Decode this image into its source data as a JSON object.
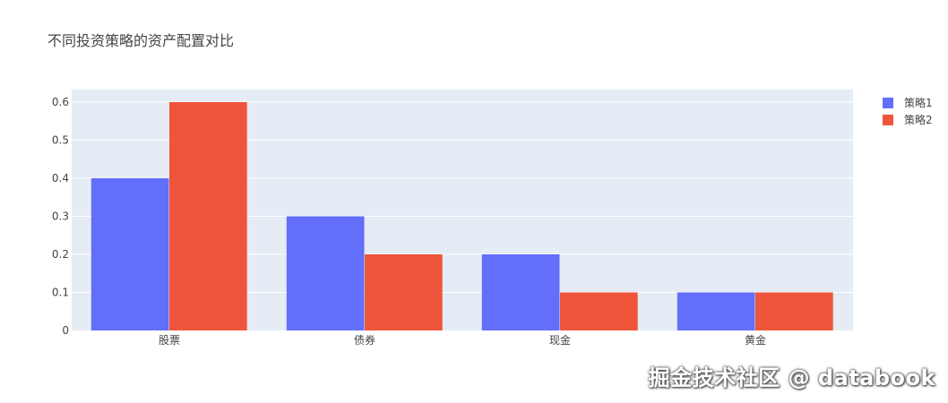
{
  "chart_data": {
    "type": "bar",
    "barmode": "group",
    "title": "不同投资策略的资产配置对比",
    "xlabel": "",
    "ylabel": "",
    "categories": [
      "股票",
      "债券",
      "现金",
      "黄金"
    ],
    "series": [
      {
        "name": "策略1",
        "values": [
          0.4,
          0.3,
          0.2,
          0.1
        ],
        "color": "#636efa"
      },
      {
        "name": "策略2",
        "values": [
          0.6,
          0.2,
          0.1,
          0.1
        ],
        "color": "#ef553b"
      }
    ],
    "ylim": [
      0,
      0.633
    ],
    "yticks": [
      0,
      0.1,
      0.2,
      0.3,
      0.4,
      0.5,
      0.6
    ],
    "ytick_labels": [
      "0",
      "0.1",
      "0.2",
      "0.3",
      "0.4",
      "0.5",
      "0.6"
    ],
    "grid": true,
    "plot_bgcolor": "#e5ecf6",
    "legend_position": "top-right"
  },
  "watermark": "掘金技术社区 @ databook"
}
